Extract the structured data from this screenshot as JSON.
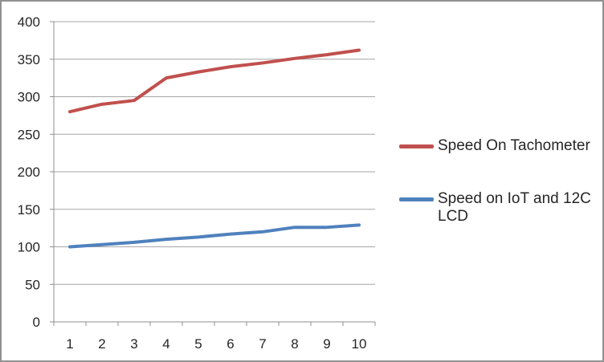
{
  "chart_data": {
    "type": "line",
    "x": [
      1,
      2,
      3,
      4,
      5,
      6,
      7,
      8,
      9,
      10
    ],
    "xtick_labels": [
      "1",
      "2",
      "3",
      "4",
      "5",
      "6",
      "7",
      "8",
      "9",
      "10"
    ],
    "series": [
      {
        "name": "Speed On Tachometer",
        "color": "#C0504D",
        "values": [
          280,
          290,
          295,
          325,
          333,
          340,
          345,
          351,
          356,
          362
        ]
      },
      {
        "name": "Speed on IoT and 12C LCD",
        "color": "#4F81BD",
        "values": [
          100,
          103,
          106,
          110,
          113,
          117,
          120,
          126,
          126,
          129
        ]
      }
    ],
    "title": "",
    "xlabel": "",
    "ylabel": "",
    "ylim": [
      0,
      400
    ],
    "ytick_step": 50,
    "ytick_labels": [
      "0",
      "50",
      "100",
      "150",
      "200",
      "250",
      "300",
      "350",
      "400"
    ],
    "grid": true,
    "legend_position": "right"
  },
  "legend": {
    "items": [
      {
        "label": "Speed On Tachometer",
        "lines": [
          "Speed On Tachometer"
        ],
        "color": "#C0504D"
      },
      {
        "label": "Speed on IoT and 12C LCD",
        "lines": [
          "Speed on IoT and 12C",
          "LCD"
        ],
        "color": "#4F81BD"
      }
    ]
  },
  "colors": {
    "gridline": "#A6A6A6",
    "axis": "#8F8F8F",
    "tick": "#8F8F8F",
    "text": "#262626",
    "frame_border": "#919191",
    "background": "#FFFFFF"
  }
}
